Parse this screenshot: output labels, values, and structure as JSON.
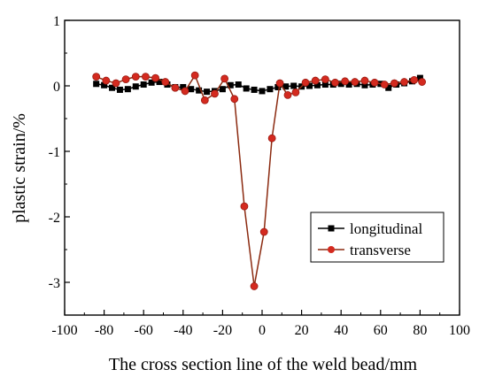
{
  "chart_data": {
    "type": "line",
    "title": "",
    "xlabel": "The cross section line of the weld bead/mm",
    "ylabel": "plastic strain/%",
    "xlim": [
      -100,
      100
    ],
    "ylim": [
      -3.5,
      1
    ],
    "x_ticks": [
      -100,
      -80,
      -60,
      -40,
      -20,
      0,
      20,
      40,
      60,
      80,
      100
    ],
    "y_ticks": [
      1,
      0,
      -1,
      -2,
      -3
    ],
    "x_tick_labels": [
      "-100",
      "-80",
      "-60",
      "-40",
      "-20",
      "0",
      "20",
      "40",
      "60",
      "80",
      "100"
    ],
    "y_tick_labels": [
      "1",
      "0",
      "-1",
      "-2",
      "-3"
    ],
    "legend_position": "lower-right",
    "grid": false,
    "series": [
      {
        "name": "longitudinal",
        "color": "#000000",
        "marker": "square",
        "x": [
          -84,
          -80,
          -76,
          -72,
          -68,
          -64,
          -60,
          -56,
          -52,
          -48,
          -44,
          -40,
          -36,
          -32,
          -28,
          -24,
          -20,
          -16,
          -12,
          -8,
          -4,
          0,
          4,
          8,
          12,
          16,
          20,
          24,
          28,
          32,
          36,
          40,
          44,
          48,
          52,
          56,
          60,
          64,
          68,
          72,
          76,
          80
        ],
        "y": [
          0.03,
          0.01,
          -0.03,
          -0.06,
          -0.05,
          -0.01,
          0.02,
          0.05,
          0.06,
          0.02,
          -0.02,
          -0.02,
          -0.05,
          -0.07,
          -0.09,
          -0.08,
          -0.05,
          0.01,
          0.02,
          -0.04,
          -0.06,
          -0.08,
          -0.05,
          -0.02,
          -0.01,
          0.0,
          -0.01,
          0.0,
          0.01,
          0.02,
          0.02,
          0.03,
          0.02,
          0.03,
          0.01,
          0.02,
          0.03,
          -0.03,
          0.02,
          0.04,
          0.07,
          0.12
        ]
      },
      {
        "name": "transverse",
        "color": "#d42a1f",
        "marker": "circle",
        "x": [
          -84,
          -79,
          -74,
          -69,
          -64,
          -59,
          -54,
          -49,
          -44,
          -39,
          -34,
          -29,
          -24,
          -19,
          -14,
          -9,
          -4,
          1,
          5,
          9,
          13,
          17,
          22,
          27,
          32,
          37,
          42,
          47,
          52,
          57,
          62,
          67,
          72,
          77,
          81
        ],
        "y": [
          0.14,
          0.08,
          0.04,
          0.1,
          0.14,
          0.14,
          0.12,
          0.06,
          -0.03,
          -0.08,
          0.16,
          -0.22,
          -0.12,
          0.11,
          -0.2,
          -1.84,
          -3.06,
          -2.23,
          -0.8,
          0.04,
          -0.14,
          -0.1,
          0.05,
          0.08,
          0.1,
          0.05,
          0.07,
          0.06,
          0.08,
          0.05,
          0.02,
          0.04,
          0.06,
          0.09,
          0.06
        ]
      }
    ]
  }
}
